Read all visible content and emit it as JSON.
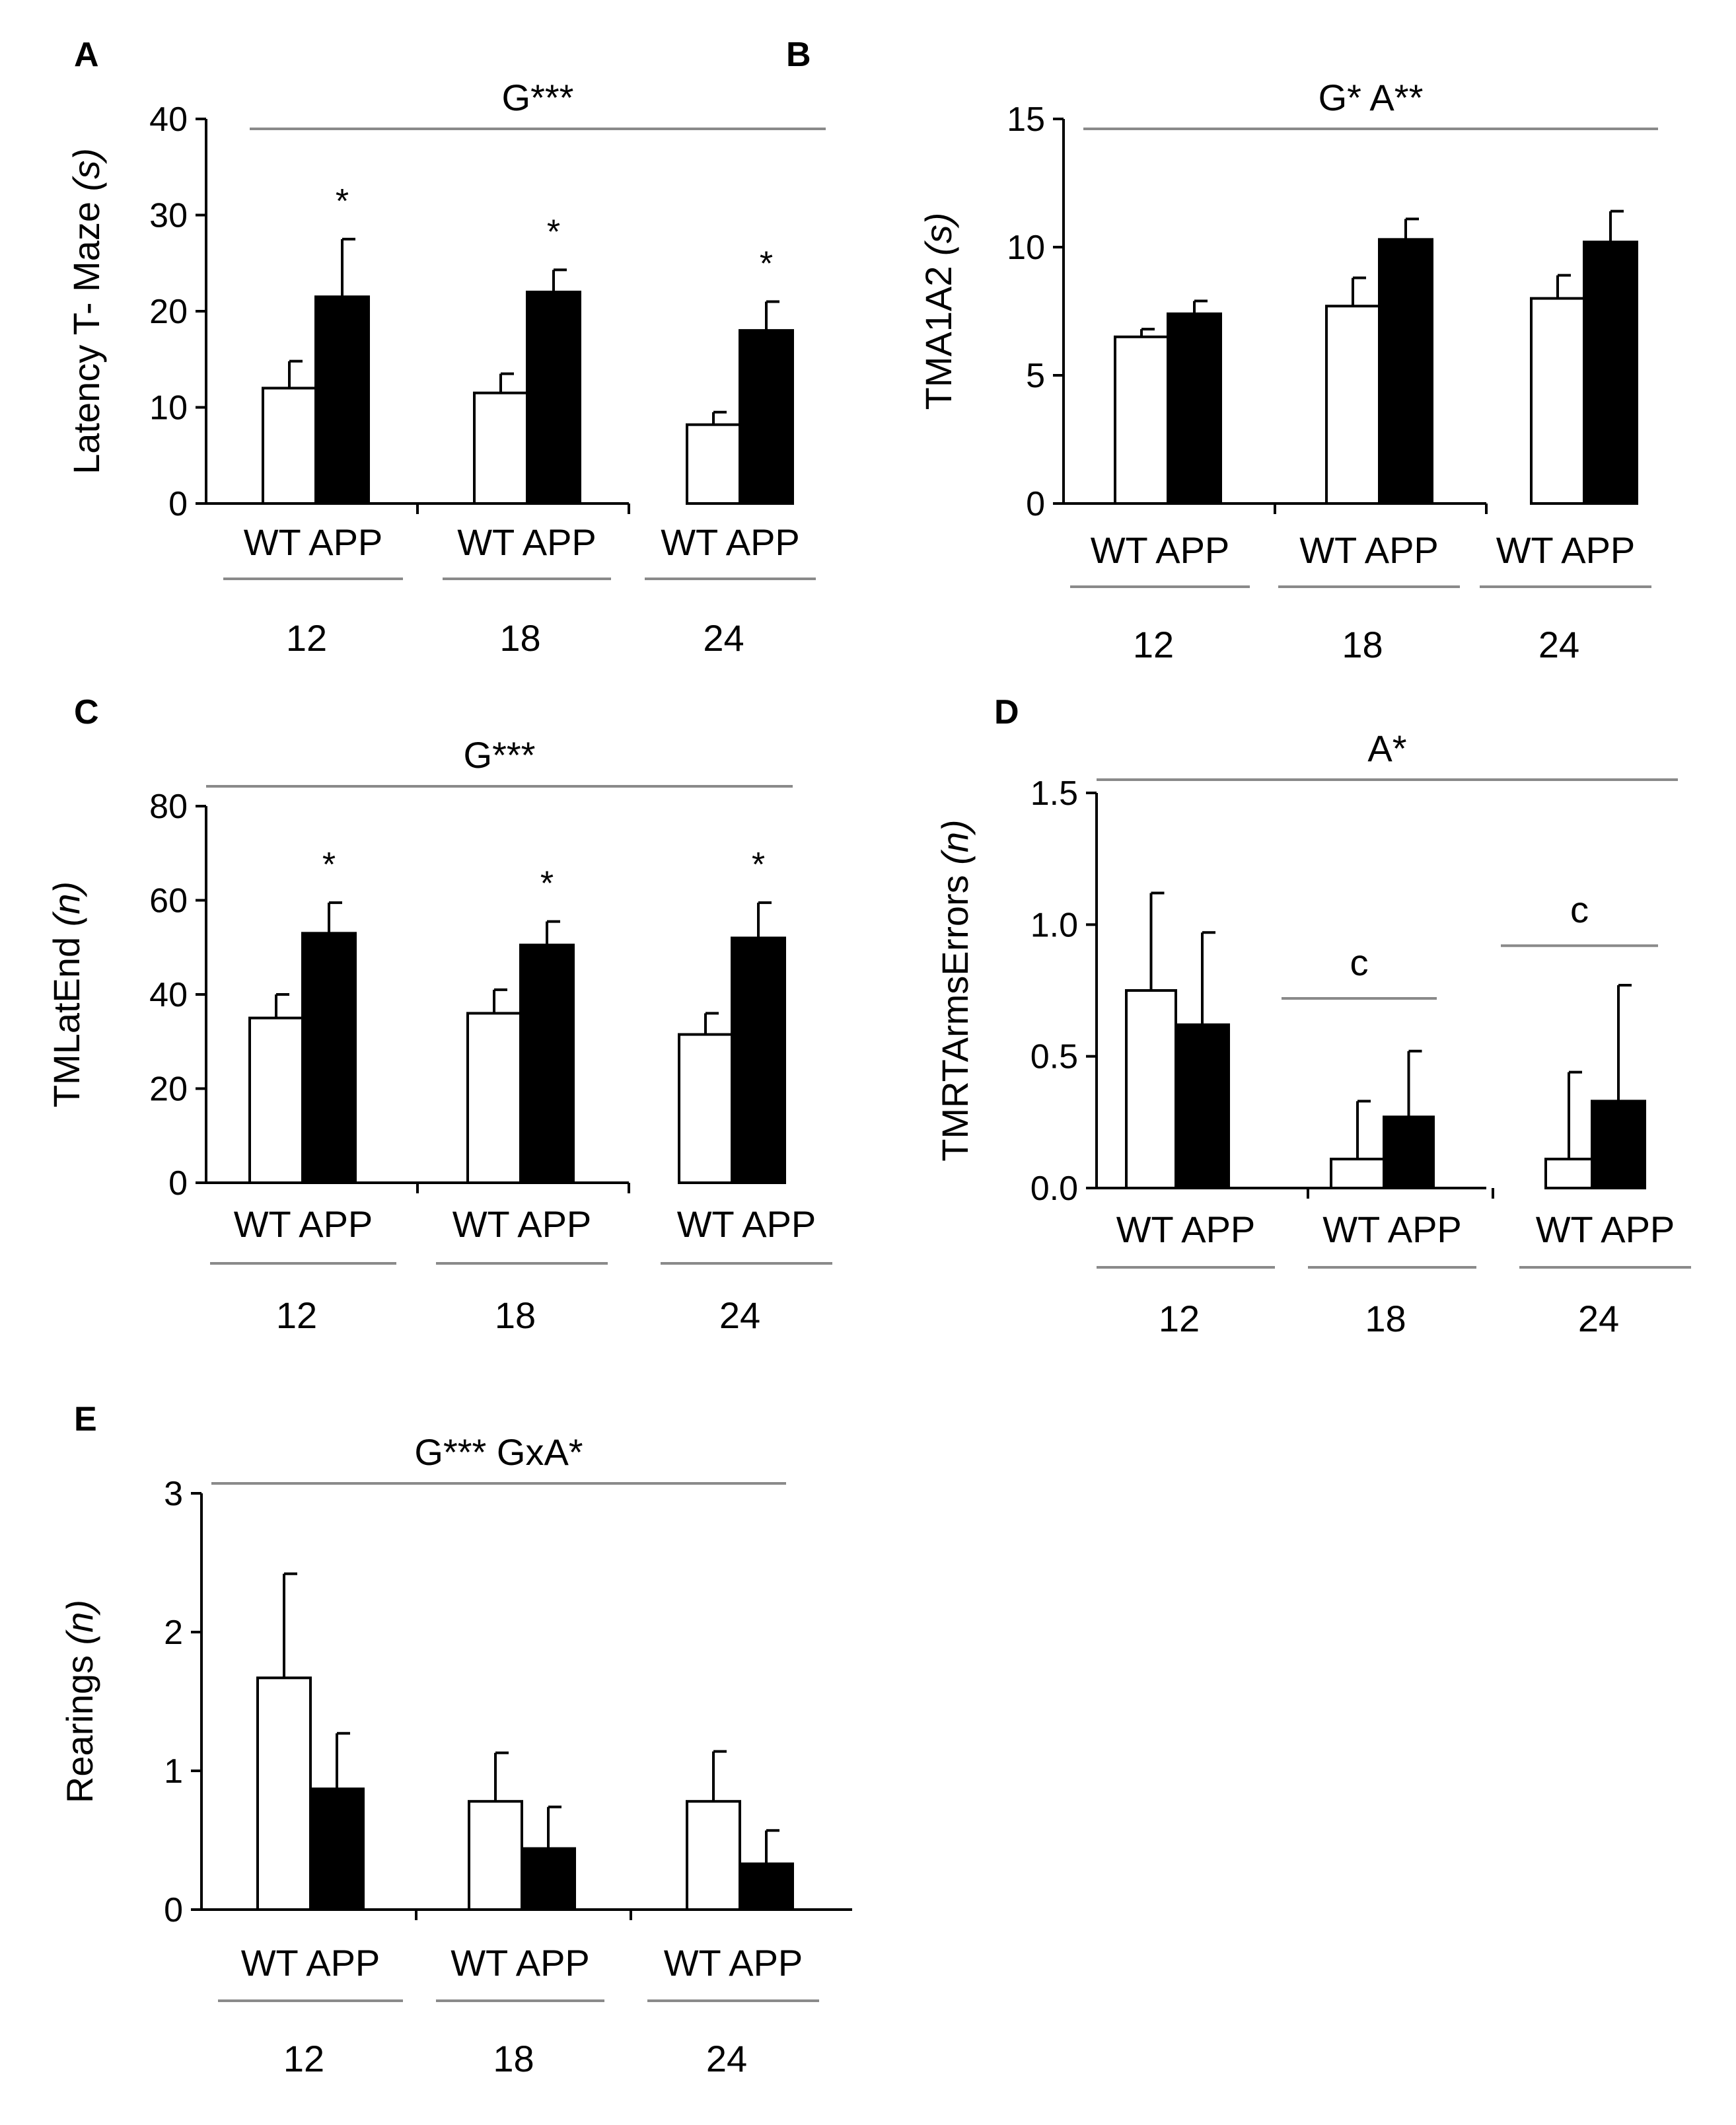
{
  "chart_data": [
    {
      "type": "bar",
      "panel": "A",
      "ylabel": "Latency T- Maze",
      "yunit": "(s)",
      "ylim": [
        0,
        40
      ],
      "yticks": [
        "0",
        "10",
        "20",
        "30",
        "40"
      ],
      "significance": "G***",
      "groups": [
        "12",
        "18",
        "24"
      ],
      "group_label": "WT APP",
      "series": [
        {
          "values": [
            12,
            11.5,
            8.2
          ],
          "errors": [
            2.8,
            2.0,
            1.3
          ],
          "fill": "#ffffff"
        },
        {
          "values": [
            21.5,
            22,
            18
          ],
          "errors": [
            6.0,
            2.3,
            3.0
          ],
          "fill": "#000000"
        }
      ],
      "annotations": [
        {
          "group": 0,
          "series": 1,
          "text": "*"
        },
        {
          "group": 1,
          "series": 1,
          "text": "*"
        },
        {
          "group": 2,
          "series": 1,
          "text": "*"
        }
      ],
      "sub_lines": []
    },
    {
      "type": "bar",
      "panel": "B",
      "ylabel": "TMA1A2",
      "yunit": "(s)",
      "ylim": [
        0,
        15
      ],
      "yticks": [
        "0",
        "5",
        "10",
        "15"
      ],
      "significance": "G* A**",
      "groups": [
        "12",
        "18",
        "24"
      ],
      "group_label": "WT APP",
      "series": [
        {
          "values": [
            6.5,
            7.7,
            8.0
          ],
          "errors": [
            0.3,
            1.1,
            0.9
          ],
          "fill": "#ffffff"
        },
        {
          "values": [
            7.4,
            10.3,
            10.2
          ],
          "errors": [
            0.5,
            0.8,
            1.2
          ],
          "fill": "#000000"
        }
      ],
      "annotations": [],
      "sub_lines": []
    },
    {
      "type": "bar",
      "panel": "C",
      "ylabel": "TMLatEnd",
      "yunit": "(n)",
      "ylim": [
        0,
        80
      ],
      "yticks": [
        "0",
        "20",
        "40",
        "60",
        "80"
      ],
      "significance": "G***",
      "groups": [
        "12",
        "18",
        "24"
      ],
      "group_label": "WT APP",
      "series": [
        {
          "values": [
            35,
            36,
            31.5
          ],
          "errors": [
            5,
            5,
            4.5
          ],
          "fill": "#ffffff"
        },
        {
          "values": [
            53,
            50.5,
            52
          ],
          "errors": [
            6.5,
            5,
            7.5
          ],
          "fill": "#000000"
        }
      ],
      "annotations": [
        {
          "group": 0,
          "series": 1,
          "text": "*"
        },
        {
          "group": 1,
          "series": 1,
          "text": "*"
        },
        {
          "group": 2,
          "series": 1,
          "text": "*"
        }
      ],
      "sub_lines": []
    },
    {
      "type": "bar",
      "panel": "D",
      "ylabel": "TMRTArmsErrors",
      "yunit": "(n)",
      "ylim": [
        0,
        1.5
      ],
      "yticks": [
        "0.0",
        "0.5",
        "1.0",
        "1.5"
      ],
      "significance": "A*",
      "groups": [
        "12",
        "18",
        "24"
      ],
      "group_label": "WT APP",
      "series": [
        {
          "values": [
            0.75,
            0.11,
            0.11
          ],
          "errors": [
            0.37,
            0.22,
            0.33
          ],
          "fill": "#ffffff"
        },
        {
          "values": [
            0.62,
            0.27,
            0.33
          ],
          "errors": [
            0.35,
            0.25,
            0.44
          ],
          "fill": "#000000"
        }
      ],
      "annotations": [],
      "sub_lines": [
        {
          "group": 1,
          "y": 0.72,
          "text": "c"
        },
        {
          "group": 2,
          "y": 0.92,
          "text": "c"
        }
      ]
    },
    {
      "type": "bar",
      "panel": "E",
      "ylabel": "Rearings",
      "yunit": "(n)",
      "ylim": [
        0,
        3
      ],
      "yticks": [
        "0",
        "1",
        "2",
        "3"
      ],
      "significance": "G*** GxA*",
      "groups": [
        "12",
        "18",
        "24"
      ],
      "group_label": "WT APP",
      "series": [
        {
          "values": [
            1.67,
            0.78,
            0.78
          ],
          "errors": [
            0.75,
            0.35,
            0.36
          ],
          "fill": "#ffffff"
        },
        {
          "values": [
            0.87,
            0.44,
            0.33
          ],
          "errors": [
            0.4,
            0.3,
            0.24
          ],
          "fill": "#000000"
        }
      ],
      "annotations": [],
      "sub_lines": []
    }
  ]
}
